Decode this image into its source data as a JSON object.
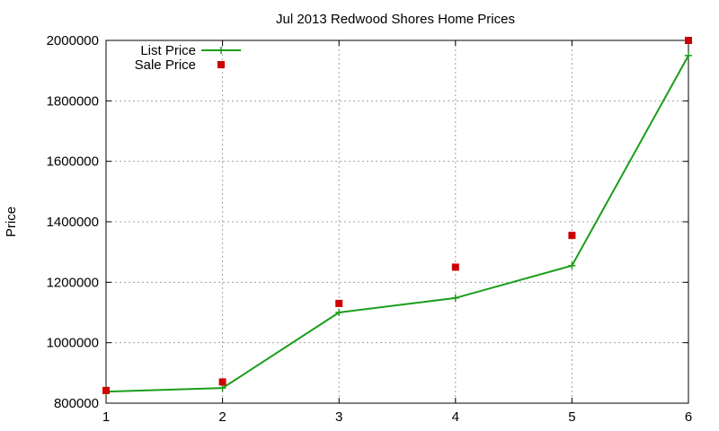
{
  "chart_data": {
    "type": "line",
    "title": "Jul 2013 Redwood Shores Home Prices",
    "xlabel": "",
    "ylabel": "Price",
    "x": [
      1,
      2,
      3,
      4,
      5,
      6
    ],
    "xlim": [
      1,
      6
    ],
    "ylim": [
      800000,
      2000000
    ],
    "x_ticks": [
      1,
      2,
      3,
      4,
      5,
      6
    ],
    "y_ticks": [
      800000,
      1000000,
      1200000,
      1400000,
      1600000,
      1800000,
      2000000
    ],
    "grid": true,
    "legend_position": "top-left",
    "series": [
      {
        "name": "List Price",
        "style": "line-with-plus-markers",
        "color": "#1a9e1a",
        "values": [
          838000,
          850000,
          1100000,
          1148000,
          1255000,
          1950000
        ]
      },
      {
        "name": "Sale Price",
        "style": "square-points",
        "color": "#cc0000",
        "values": [
          842000,
          870000,
          1130000,
          1250000,
          1355000,
          2000000
        ]
      }
    ]
  }
}
